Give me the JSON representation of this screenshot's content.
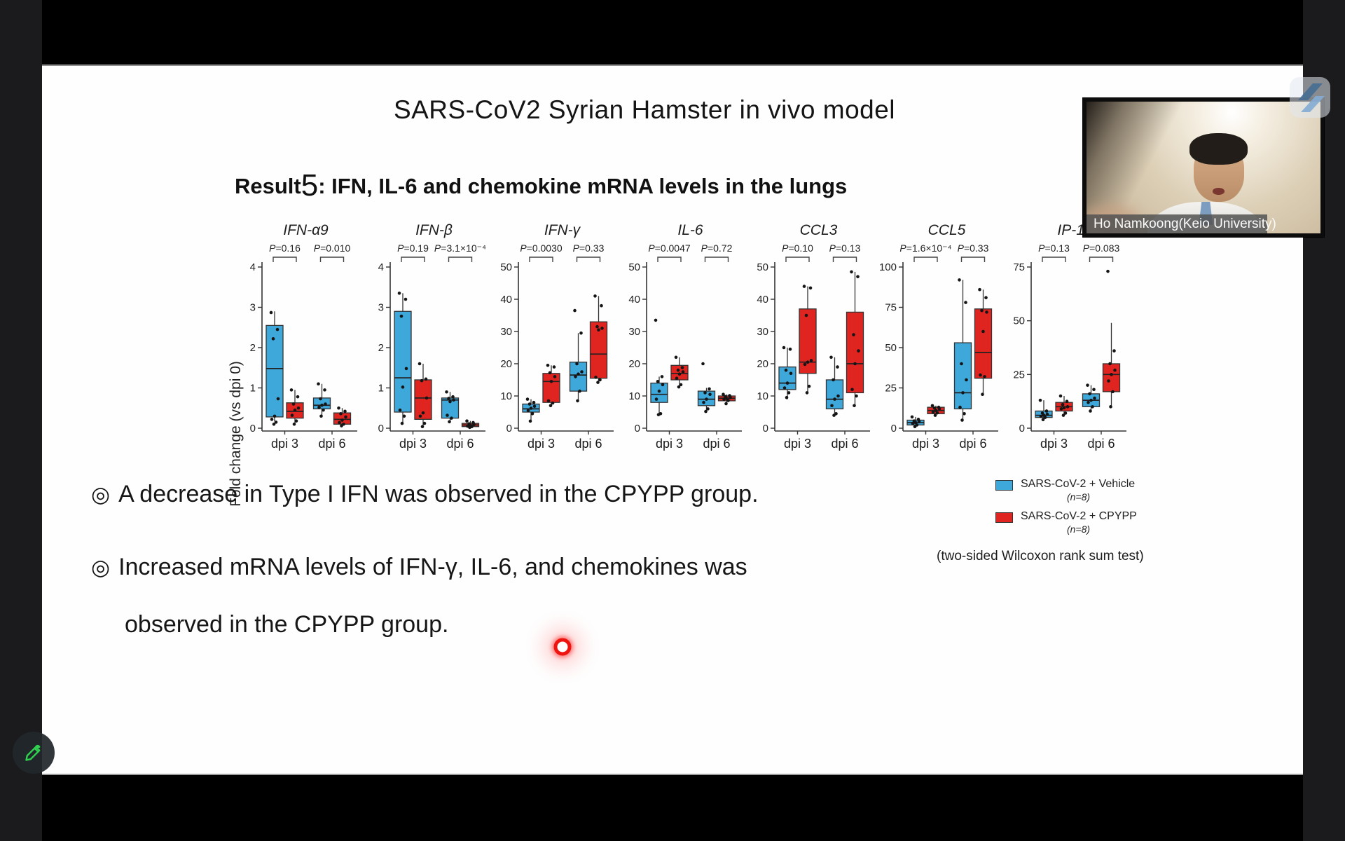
{
  "slide": {
    "title": "SARS-CoV2 Syrian Hamster in vivo model",
    "result_heading": {
      "prefix": "Result",
      "number": "5",
      "rest": ": IFN, IL-6 and chemokine mRNA levels in the lungs"
    },
    "bullets": [
      {
        "marker": "◎",
        "text": "A decrease in Type I IFN was observed in the CPYPP group."
      },
      {
        "marker": "◎",
        "line1": "Increased mRNA levels of IFN-γ, IL-6, and chemokines was",
        "line2": "observed in the CPYPP group."
      }
    ],
    "legend": {
      "items": [
        {
          "label": "SARS-CoV-2 + Vehicle",
          "n": "(n=8)",
          "color": "#3fa8db"
        },
        {
          "label": "SARS-CoV-2 + CPYPP",
          "n": "(n=8)",
          "color": "#e02521"
        }
      ],
      "note": "(two-sided Wilcoxon rank sum test)"
    }
  },
  "webcam": {
    "name_label": "Ho Namkoong(Keio University)"
  },
  "colors": {
    "vehicle": "#3fa8db",
    "cpypp": "#e02521",
    "laser": "#ee1410",
    "draw_pencil": "#2fd14e"
  },
  "chart_data": {
    "type": "box",
    "ylabel": "Fold change (vs dpi 0)",
    "group_labels": [
      "dpi 3",
      "dpi 6"
    ],
    "series_names": [
      "SARS-CoV-2 + Vehicle",
      "SARS-CoV-2 + CPYPP"
    ],
    "stat_note": "(two-sided Wilcoxon rank sum test)",
    "panels": [
      {
        "title": "IFN-α9",
        "ylim": [
          0,
          4
        ],
        "yticks": [
          0,
          1,
          2,
          3,
          4
        ],
        "p_values": [
          "P=0.16",
          "P=0.010"
        ],
        "groups": [
          {
            "label": "dpi 3",
            "boxes": [
              {
                "series": "vehicle",
                "lo": 0.17,
                "q1": 0.28,
                "med": 1.48,
                "q3": 2.55,
                "hi": 2.9,
                "points": [
                  2.87,
                  2.45,
                  2.22,
                  0.73,
                  0.3,
                  0.22,
                  0.15,
                  0.1
                ]
              },
              {
                "series": "cpypp",
                "lo": 0.08,
                "q1": 0.25,
                "med": 0.42,
                "q3": 0.63,
                "hi": 0.95,
                "points": [
                  0.95,
                  0.78,
                  0.6,
                  0.5,
                  0.45,
                  0.32,
                  0.18,
                  0.1
                ]
              }
            ]
          },
          {
            "label": "dpi 6",
            "boxes": [
              {
                "series": "vehicle",
                "lo": 0.28,
                "q1": 0.48,
                "med": 0.57,
                "q3": 0.75,
                "hi": 1.1,
                "points": [
                  1.1,
                  0.95,
                  0.73,
                  0.6,
                  0.57,
                  0.52,
                  0.45,
                  0.3
                ]
              },
              {
                "series": "cpypp",
                "lo": 0.05,
                "q1": 0.1,
                "med": 0.22,
                "q3": 0.38,
                "hi": 0.5,
                "points": [
                  0.5,
                  0.42,
                  0.36,
                  0.28,
                  0.2,
                  0.14,
                  0.1,
                  0.06
                ]
              }
            ]
          }
        ]
      },
      {
        "title": "IFN-β",
        "ylim": [
          0,
          4
        ],
        "yticks": [
          0,
          1,
          2,
          3,
          4
        ],
        "p_values": [
          "P=0.19",
          "P=3.1×10⁻⁴"
        ],
        "groups": [
          {
            "label": "dpi 3",
            "boxes": [
              {
                "series": "vehicle",
                "lo": 0.1,
                "q1": 0.4,
                "med": 1.25,
                "q3": 2.9,
                "hi": 3.35,
                "points": [
                  3.35,
                  3.2,
                  2.78,
                  1.48,
                  1.02,
                  0.45,
                  0.3,
                  0.12
                ]
              },
              {
                "series": "cpypp",
                "lo": 0.03,
                "q1": 0.22,
                "med": 0.75,
                "q3": 1.2,
                "hi": 1.6,
                "points": [
                  1.6,
                  1.22,
                  1.18,
                  0.75,
                  0.38,
                  0.3,
                  0.12,
                  0.04
                ]
              }
            ]
          },
          {
            "label": "dpi 6",
            "boxes": [
              {
                "series": "vehicle",
                "lo": 0.15,
                "q1": 0.25,
                "med": 0.7,
                "q3": 0.75,
                "hi": 0.9,
                "points": [
                  0.9,
                  0.78,
                  0.74,
                  0.7,
                  0.66,
                  0.32,
                  0.25,
                  0.16
                ]
              },
              {
                "series": "cpypp",
                "lo": 0.02,
                "q1": 0.04,
                "med": 0.08,
                "q3": 0.12,
                "hi": 0.18,
                "points": [
                  0.18,
                  0.14,
                  0.11,
                  0.09,
                  0.07,
                  0.05,
                  0.04,
                  0.02
                ]
              }
            ]
          }
        ]
      },
      {
        "title": "IFN-γ",
        "ylim": [
          0,
          50
        ],
        "yticks": [
          0,
          10,
          20,
          30,
          40,
          50
        ],
        "p_values": [
          "P=0.0030",
          "P=0.33"
        ],
        "groups": [
          {
            "label": "dpi 3",
            "boxes": [
              {
                "series": "vehicle",
                "lo": 2,
                "q1": 5,
                "med": 6,
                "q3": 7.5,
                "hi": 9,
                "points": [
                  9,
                  8,
                  7.5,
                  6.8,
                  6.2,
                  5.5,
                  4.5,
                  2.2
                ]
              },
              {
                "series": "cpypp",
                "lo": 7,
                "q1": 8,
                "med": 14.5,
                "q3": 17,
                "hi": 19.5,
                "points": [
                  19.5,
                  19,
                  17.2,
                  16,
                  14.5,
                  8.5,
                  7.8,
                  7
                ]
              }
            ]
          },
          {
            "label": "dpi 6",
            "boxes": [
              {
                "series": "vehicle",
                "lo": 8.5,
                "q1": 11.5,
                "med": 16.5,
                "q3": 20.5,
                "hi": 29.5,
                "points": [
                  36.5,
                  29.5,
                  20,
                  17.5,
                  16.8,
                  16,
                  11.5,
                  8.5
                ]
              },
              {
                "series": "cpypp",
                "lo": 14,
                "q1": 15.5,
                "med": 23,
                "q3": 33,
                "hi": 41,
                "points": [
                  41,
                  38,
                  31.5,
                  31,
                  30.5,
                  15.8,
                  15,
                  14.2
                ]
              }
            ]
          }
        ]
      },
      {
        "title": "IL-6",
        "ylim": [
          0,
          50
        ],
        "yticks": [
          0,
          10,
          20,
          30,
          40,
          50
        ],
        "p_values": [
          "P=0.0047",
          "P=0.72"
        ],
        "groups": [
          {
            "label": "dpi 3",
            "boxes": [
              {
                "series": "vehicle",
                "lo": 4,
                "q1": 8,
                "med": 10.5,
                "q3": 14,
                "hi": 16,
                "points": [
                  33.5,
                  16,
                  14.5,
                  13.5,
                  11.5,
                  9,
                  4.5,
                  4.2
                ]
              },
              {
                "series": "cpypp",
                "lo": 12.8,
                "q1": 15,
                "med": 17,
                "q3": 19.5,
                "hi": 22,
                "points": [
                  22,
                  18.8,
                  18,
                  17.5,
                  16.8,
                  15.5,
                  13.5,
                  12.8
                ]
              }
            ]
          },
          {
            "label": "dpi 6",
            "boxes": [
              {
                "series": "vehicle",
                "lo": 5,
                "q1": 7,
                "med": 9,
                "q3": 11.5,
                "hi": 12.5,
                "points": [
                  20,
                  12.2,
                  11,
                  10.5,
                  9,
                  8,
                  6,
                  5.2
                ]
              },
              {
                "series": "cpypp",
                "lo": 7.5,
                "q1": 8.5,
                "med": 9.3,
                "q3": 10,
                "hi": 10.5,
                "points": [
                  10.5,
                  10.1,
                  9.8,
                  9.5,
                  9.2,
                  9,
                  8.6,
                  7.6
                ]
              }
            ]
          }
        ]
      },
      {
        "title": "CCL3",
        "ylim": [
          0,
          50
        ],
        "yticks": [
          0,
          10,
          20,
          30,
          40,
          50
        ],
        "p_values": [
          "P=0.10",
          "P=0.13"
        ],
        "groups": [
          {
            "label": "dpi 3",
            "boxes": [
              {
                "series": "vehicle",
                "lo": 9,
                "q1": 12,
                "med": 14,
                "q3": 19,
                "hi": 25,
                "points": [
                  25,
                  24.5,
                  18,
                  17,
                  14,
                  12.5,
                  11,
                  9.5
                ]
              },
              {
                "series": "cpypp",
                "lo": 11,
                "q1": 17,
                "med": 20.5,
                "q3": 37,
                "hi": 44,
                "points": [
                  44,
                  43.5,
                  35,
                  21,
                  20.5,
                  19.8,
                  13,
                  11
                ]
              }
            ]
          },
          {
            "label": "dpi 6",
            "boxes": [
              {
                "series": "vehicle",
                "lo": 4,
                "q1": 6,
                "med": 9,
                "q3": 15,
                "hi": 22,
                "points": [
                  22,
                  19,
                  15,
                  10,
                  9,
                  7,
                  4.5,
                  4
                ]
              },
              {
                "series": "cpypp",
                "lo": 7,
                "q1": 11,
                "med": 20,
                "q3": 36,
                "hi": 48.5,
                "points": [
                  48.5,
                  47,
                  29,
                  24,
                  20,
                  12,
                  10,
                  7
                ]
              }
            ]
          }
        ]
      },
      {
        "title": "CCL5",
        "ylim": [
          0,
          100
        ],
        "yticks": [
          0,
          25,
          50,
          75,
          100
        ],
        "p_values": [
          "P=1.6×10⁻⁴",
          "P=0.33"
        ],
        "groups": [
          {
            "label": "dpi 3",
            "boxes": [
              {
                "series": "vehicle",
                "lo": 1,
                "q1": 2,
                "med": 3.5,
                "q3": 5,
                "hi": 7,
                "points": [
                  7,
                  5.5,
                  4.5,
                  4,
                  3.5,
                  3,
                  2,
                  1
                ]
              },
              {
                "series": "cpypp",
                "lo": 8,
                "q1": 9,
                "med": 11,
                "q3": 13,
                "hi": 14,
                "points": [
                  14,
                  13,
                  12.5,
                  12,
                  11,
                  10,
                  9.5,
                  8
                ]
              }
            ]
          },
          {
            "label": "dpi 6",
            "boxes": [
              {
                "series": "vehicle",
                "lo": 5,
                "q1": 12,
                "med": 22,
                "q3": 53,
                "hi": 92,
                "points": [
                  92,
                  78,
                  40,
                  30,
                  22,
                  13,
                  9,
                  5
                ]
              },
              {
                "series": "cpypp",
                "lo": 21,
                "q1": 31,
                "med": 47,
                "q3": 74,
                "hi": 86,
                "points": [
                  86,
                  81,
                  73,
                  72,
                  60,
                  33,
                  32,
                  21
                ]
              }
            ]
          }
        ]
      },
      {
        "title": "IP-10",
        "ylim": [
          0,
          75
        ],
        "yticks": [
          0,
          25,
          50,
          75
        ],
        "p_values": [
          "P=0.13",
          "P=0.083"
        ],
        "groups": [
          {
            "label": "dpi 3",
            "boxes": [
              {
                "series": "vehicle",
                "lo": 4,
                "q1": 5,
                "med": 6,
                "q3": 8,
                "hi": 13,
                "points": [
                  13,
                  8,
                  7,
                  6.5,
                  6,
                  5.5,
                  5,
                  4
                ]
              },
              {
                "series": "cpypp",
                "lo": 6,
                "q1": 8,
                "med": 10,
                "q3": 12,
                "hi": 15,
                "points": [
                  15,
                  12.5,
                  11,
                  10,
                  9.5,
                  9,
                  7,
                  6
                ]
              }
            ]
          },
          {
            "label": "dpi 6",
            "boxes": [
              {
                "series": "vehicle",
                "lo": 8,
                "q1": 10,
                "med": 13,
                "q3": 16,
                "hi": 20,
                "points": [
                  20,
                  18,
                  16,
                  14,
                  13,
                  12,
                  10,
                  8
                ]
              },
              {
                "series": "cpypp",
                "lo": 10,
                "q1": 17,
                "med": 25,
                "q3": 30,
                "hi": 49,
                "points": [
                  73,
                  36,
                  30,
                  27,
                  25,
                  22,
                  17,
                  10
                ]
              }
            ]
          }
        ]
      }
    ]
  }
}
